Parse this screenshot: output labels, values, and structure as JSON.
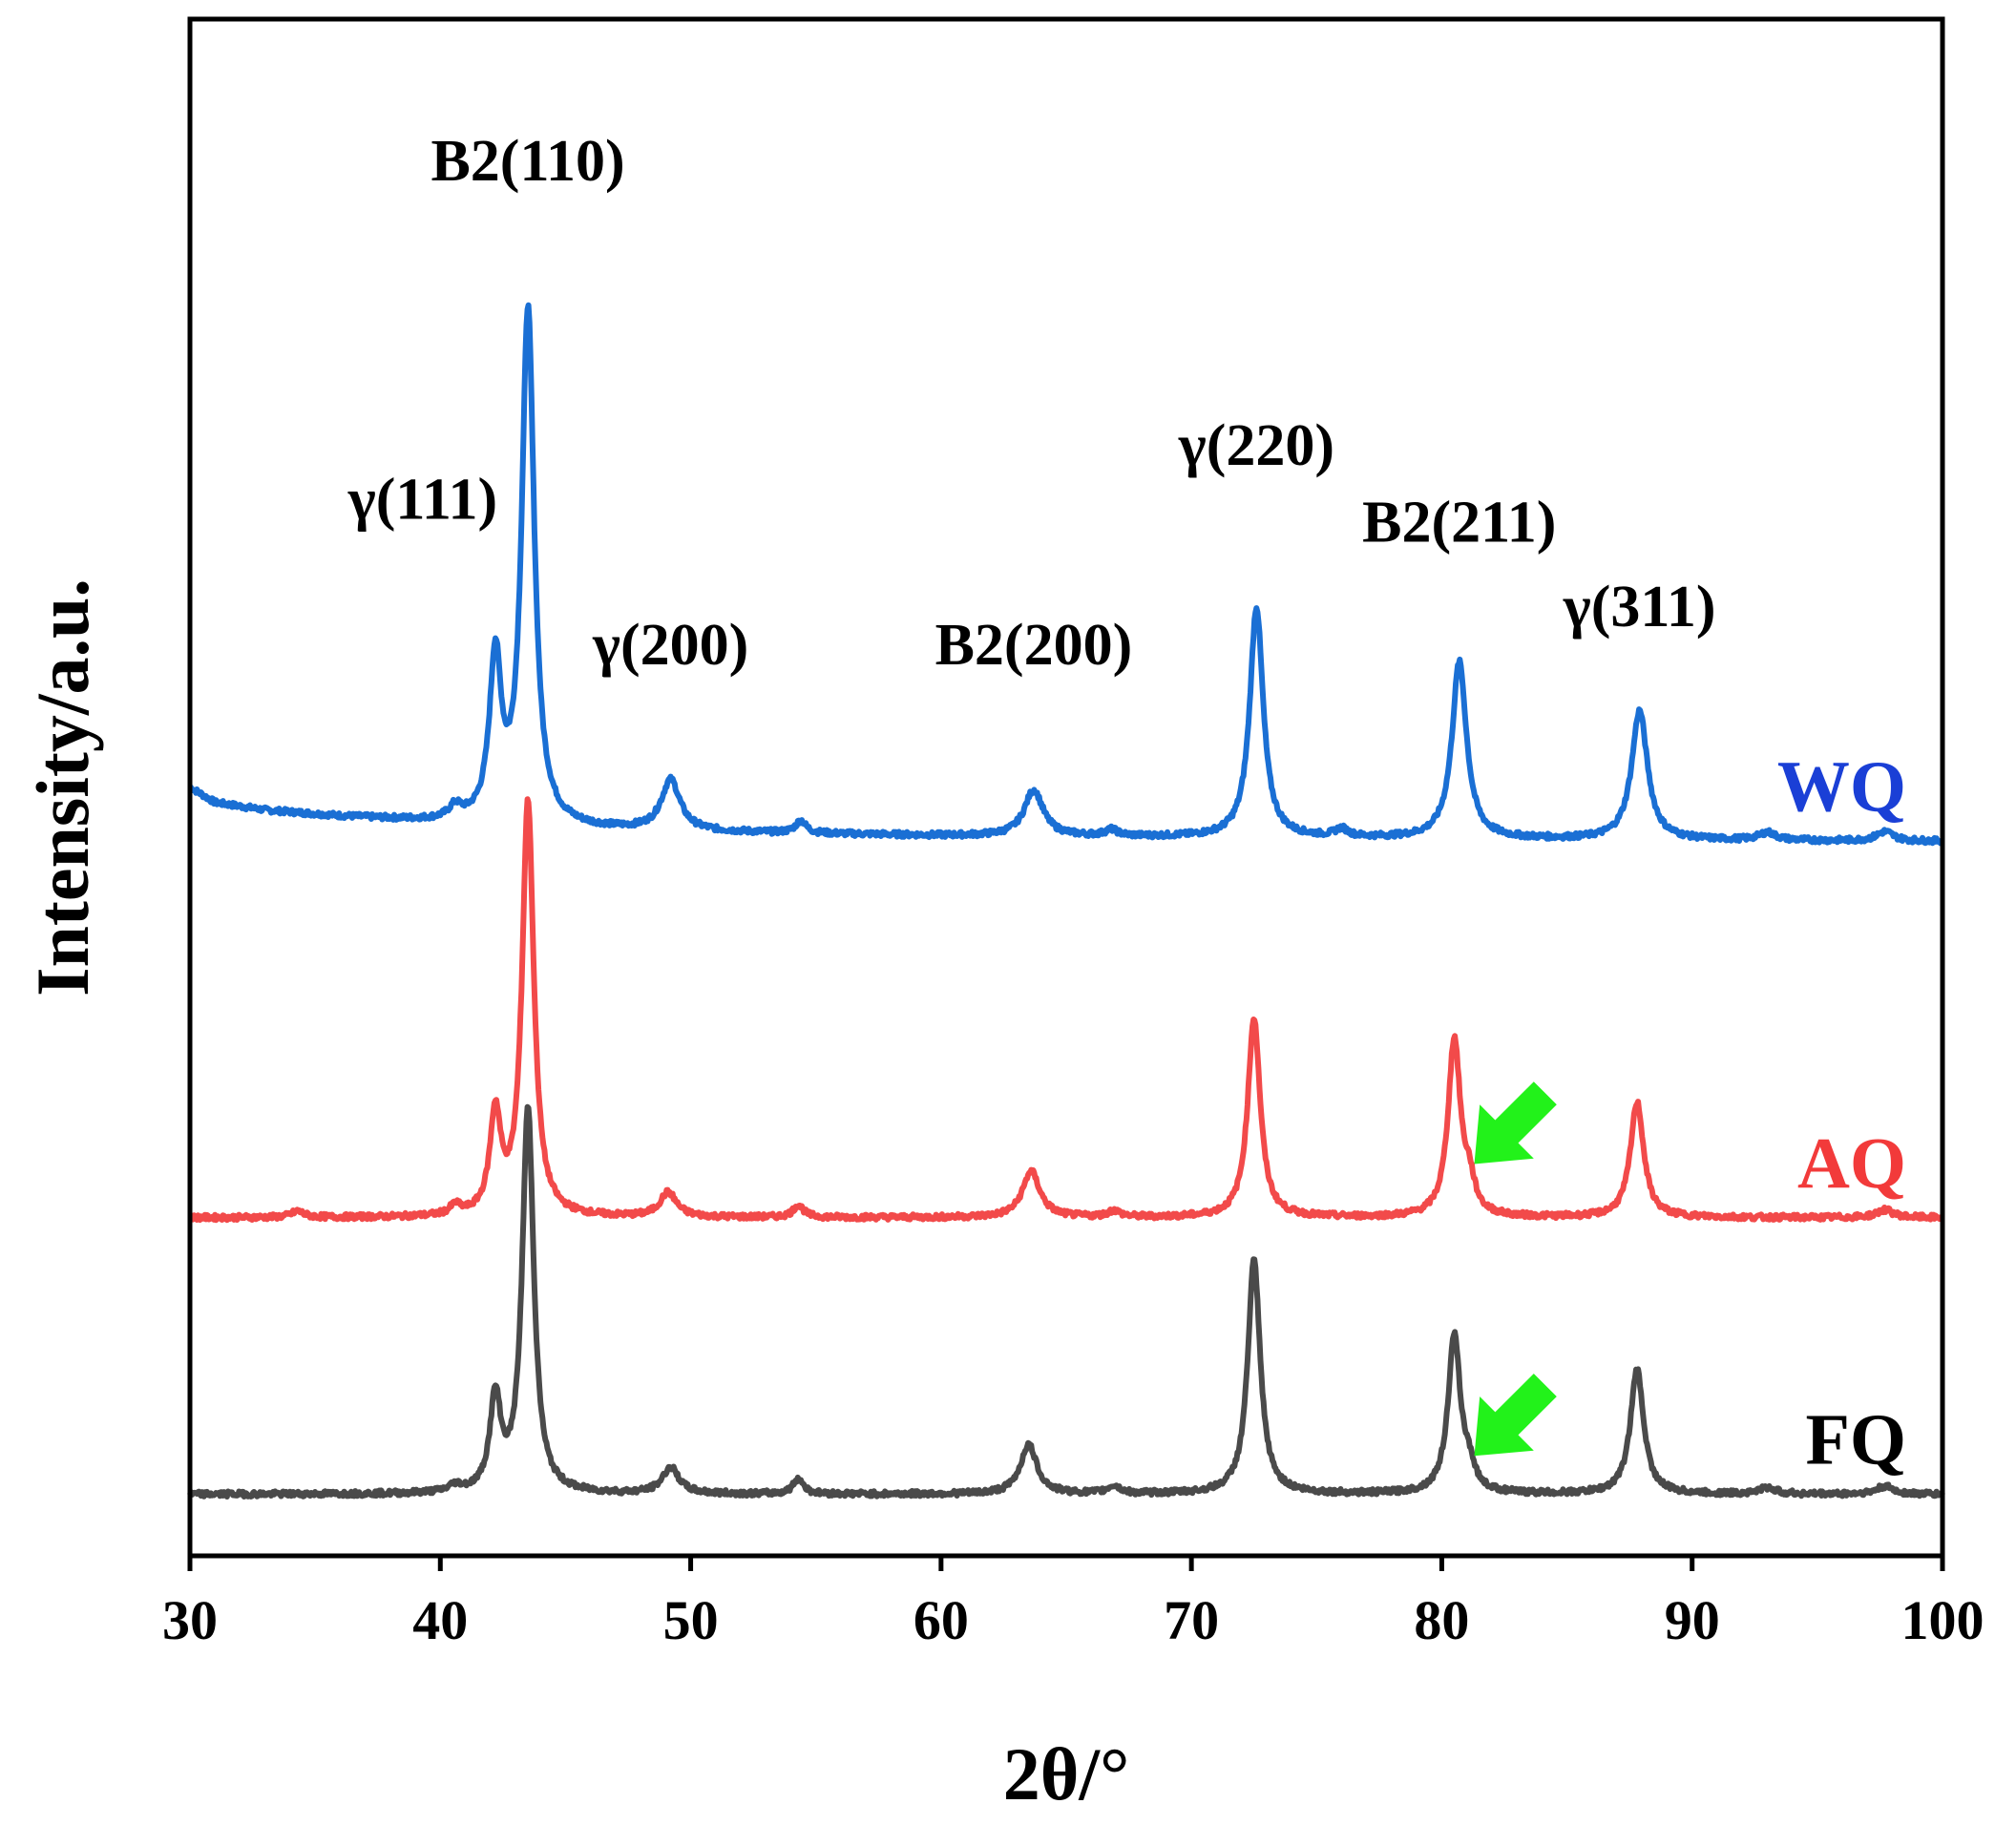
{
  "chart_data": {
    "type": "line",
    "title": "",
    "xlabel": "2θ/°",
    "ylabel": "Intensity/a.u.",
    "xlim": [
      30,
      100
    ],
    "xticks": [
      30,
      40,
      50,
      60,
      70,
      80,
      90,
      100
    ],
    "ylim": [
      0,
      100
    ],
    "yticks_shown": false,
    "grid": false,
    "series": [
      {
        "name": "WQ",
        "color": "#1a6fd4",
        "label_color": "#1a3fd6",
        "offset": 46.5,
        "background": {
          "points": [
            [
              30,
              3.5
            ],
            [
              31,
              2.5
            ],
            [
              33,
              2.0
            ],
            [
              36,
              1.6
            ],
            [
              40,
              1.2
            ],
            [
              45,
              0.8
            ],
            [
              50,
              0.6
            ],
            [
              60,
              0.35
            ],
            [
              70,
              0.25
            ],
            [
              80,
              0.15
            ],
            [
              90,
              0.05
            ],
            [
              100,
              0
            ]
          ]
        },
        "peaks": [
          {
            "x": 40.6,
            "h": 0.8,
            "w": 0.3
          },
          {
            "x": 42.2,
            "h": 10.5,
            "w": 0.28
          },
          {
            "x": 43.5,
            "h": 33.5,
            "w": 0.3
          },
          {
            "x": 49.2,
            "h": 3.3,
            "w": 0.45
          },
          {
            "x": 54.4,
            "h": 0.8,
            "w": 0.25
          },
          {
            "x": 63.7,
            "h": 3.0,
            "w": 0.45
          },
          {
            "x": 66.8,
            "h": 0.4,
            "w": 0.3
          },
          {
            "x": 72.6,
            "h": 15.0,
            "w": 0.32
          },
          {
            "x": 76.0,
            "h": 0.5,
            "w": 0.3
          },
          {
            "x": 80.7,
            "h": 11.5,
            "w": 0.35
          },
          {
            "x": 87.9,
            "h": 8.4,
            "w": 0.38
          },
          {
            "x": 93.0,
            "h": 0.5,
            "w": 0.4
          },
          {
            "x": 97.7,
            "h": 0.6,
            "w": 0.4
          }
        ]
      },
      {
        "name": "AQ",
        "color": "#f24a4a",
        "label_color": "#f23a3a",
        "offset": 22.0,
        "background": {
          "points": [
            [
              30,
              0
            ],
            [
              100,
              0
            ]
          ]
        },
        "peaks": [
          {
            "x": 34.3,
            "h": 0.4,
            "w": 0.3
          },
          {
            "x": 40.6,
            "h": 0.6,
            "w": 0.25
          },
          {
            "x": 42.2,
            "h": 6.5,
            "w": 0.26
          },
          {
            "x": 43.5,
            "h": 27.0,
            "w": 0.28
          },
          {
            "x": 49.1,
            "h": 1.6,
            "w": 0.4
          },
          {
            "x": 54.3,
            "h": 0.8,
            "w": 0.25
          },
          {
            "x": 63.6,
            "h": 3.0,
            "w": 0.42
          },
          {
            "x": 66.9,
            "h": 0.4,
            "w": 0.3
          },
          {
            "x": 72.5,
            "h": 13.0,
            "w": 0.3
          },
          {
            "x": 80.5,
            "h": 11.5,
            "w": 0.3
          },
          {
            "x": 81.1,
            "h": 1.8,
            "w": 0.25
          },
          {
            "x": 87.8,
            "h": 7.5,
            "w": 0.32
          },
          {
            "x": 97.7,
            "h": 0.5,
            "w": 0.4
          }
        ]
      },
      {
        "name": "FQ",
        "color": "#4a4a4a",
        "label_color": "#000000",
        "offset": 4.0,
        "background": {
          "points": [
            [
              30,
              0
            ],
            [
              100,
              0
            ]
          ]
        },
        "peaks": [
          {
            "x": 40.6,
            "h": 0.4,
            "w": 0.3
          },
          {
            "x": 42.2,
            "h": 6.0,
            "w": 0.26
          },
          {
            "x": 43.5,
            "h": 25.0,
            "w": 0.28
          },
          {
            "x": 49.2,
            "h": 1.7,
            "w": 0.4
          },
          {
            "x": 54.3,
            "h": 1.0,
            "w": 0.25
          },
          {
            "x": 63.5,
            "h": 3.2,
            "w": 0.4
          },
          {
            "x": 66.9,
            "h": 0.5,
            "w": 0.3
          },
          {
            "x": 72.5,
            "h": 15.2,
            "w": 0.3
          },
          {
            "x": 80.5,
            "h": 10.2,
            "w": 0.3
          },
          {
            "x": 81.1,
            "h": 1.3,
            "w": 0.25
          },
          {
            "x": 87.8,
            "h": 8.1,
            "w": 0.32
          },
          {
            "x": 93.0,
            "h": 0.4,
            "w": 0.4
          },
          {
            "x": 97.7,
            "h": 0.5,
            "w": 0.4
          }
        ]
      }
    ],
    "peak_labels": [
      {
        "text": "B2(110)",
        "x": 43.5,
        "y": 89.5
      },
      {
        "text": "γ(111)",
        "x": 39.3,
        "y": 67.5
      },
      {
        "text": "γ(200)",
        "x": 49.2,
        "y": 58.0
      },
      {
        "text": "B2(200)",
        "x": 63.7,
        "y": 58.0
      },
      {
        "text": "γ(220)",
        "x": 72.6,
        "y": 71.0
      },
      {
        "text": "B2(211)",
        "x": 80.7,
        "y": 66.0
      },
      {
        "text": "γ(311)",
        "x": 87.9,
        "y": 60.5
      }
    ],
    "annotations": [
      {
        "type": "arrow",
        "color": "#22f21a",
        "direction": "down-left",
        "target_x": 81.3,
        "target_y": 25.5,
        "series": "AQ"
      },
      {
        "type": "arrow",
        "color": "#22f21a",
        "direction": "down-left",
        "target_x": 81.3,
        "target_y": 6.5,
        "series": "FQ"
      }
    ]
  }
}
